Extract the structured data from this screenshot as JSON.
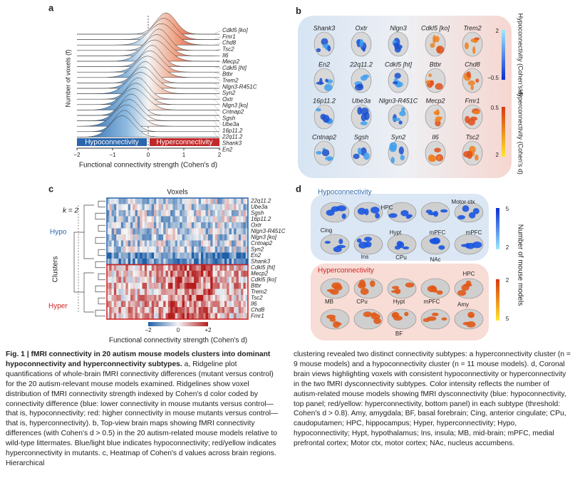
{
  "panel_a": {
    "label": "a",
    "y_label": "Number of voxels (f)",
    "models": [
      "Cdkl5 [ko]",
      "Fmr1",
      "Chd8",
      "Tsc2",
      "Il6",
      "Mecp2",
      "Cdkl5 [ht]",
      "Btbr",
      "Trem2",
      "Nlgn3-R451C",
      "Syn2",
      "Oxtr",
      "Nlgn3 [ko]",
      "Cntnap2",
      "Sgsh",
      "Ube3a",
      "16p11.2",
      "22q11.2",
      "Shank3",
      "En2"
    ],
    "x_ticks": [
      "−2",
      "−1",
      "0",
      "1",
      "2"
    ],
    "hypo_label": "Hypoconnectivity",
    "hyper_label": "Hyperconnectivity",
    "x_label": "Functional connectivity strength (Cohen's d)"
  },
  "panel_b": {
    "label": "b",
    "models": [
      "Shank3",
      "Oxtr",
      "Nlgn3",
      "Cdkl5 [ko]",
      "Trem2",
      "En2",
      "22q11.2",
      "Cdkl5 [ht]",
      "Btbr",
      "Chd8",
      "16p11.2",
      "Ube3a",
      "Nlgn3-R451C",
      "Mecp2",
      "Fmr1",
      "Cntnap2",
      "Sgsh",
      "Syn2",
      "Il6",
      "Tsc2"
    ],
    "hypo_bar": {
      "title": "Hypoconnectivity (Cohen's d)",
      "ticks": [
        "2",
        "−0.5"
      ]
    },
    "hyper_bar": {
      "title": "Hyperconnectivity (Cohen's d)",
      "ticks": [
        "0.5",
        "2"
      ]
    }
  },
  "panel_c": {
    "label": "c",
    "title": "Voxels",
    "k": "k = 2",
    "hypo": "Hypo",
    "hyper": "Hyper",
    "clusters": "Clusters",
    "models": [
      "22q11.2",
      "Ube3a",
      "Sgsh",
      "16p11.2",
      "Oxtr",
      "Nlgn3-R451C",
      "Nlgn3 [ko]",
      "Cntnap2",
      "Syn2",
      "En2",
      "Shank3",
      "Cdkl5 [ht]",
      "Mecp2",
      "Cdkl5 [ko]",
      "Btbr",
      "Trem2",
      "Tsc2",
      "Il6",
      "Chd8",
      "Fmr1"
    ],
    "ticks": [
      "−2",
      "0",
      "+2"
    ],
    "x_label": "Functional connectivity strength (Cohen's d)"
  },
  "panel_d": {
    "label": "d",
    "hypo_title": "Hypoconnectivity",
    "hyper_title": "Hyperconnectivity",
    "hypo_regions": [
      "HPC",
      "Motor ctx",
      "Cing",
      "Hypt",
      "mPFC",
      "mPFC",
      "Ins",
      "CPu",
      "NAc"
    ],
    "hyper_regions": [
      "HPC",
      "MB",
      "CPu",
      "Hypt",
      "mPFC",
      "Amy",
      "BF"
    ],
    "bar_title": "Number of mouse models",
    "hypo_ticks": [
      "5",
      "2"
    ],
    "hyper_ticks": [
      "2",
      "5"
    ]
  },
  "caption": {
    "title": "Fig. 1 | fMRI connectivity in 20 autism mouse models clusters into dominant hypoconnectivity and hyperconnectivity subtypes.",
    "left": " a, Ridgeline plot quantifications of whole-brain fMRI connectivity differences (mutant versus control) for the 20 autism-relevant mouse models examined. Ridgelines show voxel distribution of fMRI connectivity strength indexed by Cohen's d color coded by connectivity difference (blue: lower connectivity in mouse mutants versus control—that is, hypoconnectivity; red: higher connectivity in mouse mutants versus control—that is, hyperconnectivity). b, Top-view brain maps showing fMRI connectivity differences (with Cohen's d > 0.5) in the 20 autism-related mouse models relative to wild-type littermates. Blue/light blue indicates hypoconnectivity; red/yellow indicates hyperconnectivity in mutants. c, Heatmap of Cohen's d values across brain regions. Hierarchical",
    "right": "clustering revealed two distinct connectivity subtypes: a hyperconnectivity cluster (n = 9 mouse models) and a hypoconnectivity cluster (n = 11 mouse models). d, Coronal brain views highlighting voxels with consistent hypoconnectivity or hyperconnectivity in the two fMRI dysconnectivity subtypes. Color intensity reflects the number of autism-related mouse models showing fMRI dysconnectivity (blue: hypoconnectivity, top panel; red/yellow: hyperconnectivity, bottom panel) in each subtype (threshold: Cohen's d > 0.8). Amy, amygdala; BF, basal forebrain; Cing, anterior cingulate; CPu, caudoputamen; HPC, hippocampus; Hyper, hyperconnectivity; Hypo, hypoconnectivity; Hypt, hypothalamus; Ins, insula; MB, mid-brain; mPFC, medial prefrontal cortex; Motor ctx, motor cortex; NAc, nucleus accumbens."
  }
}
